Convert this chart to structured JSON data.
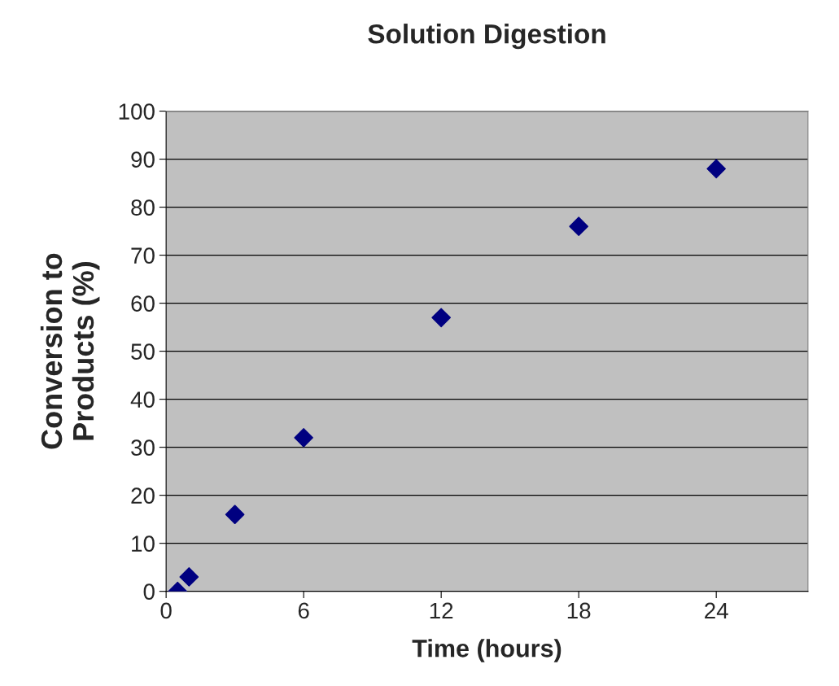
{
  "chart_data": {
    "type": "scatter",
    "title": "Solution Digestion",
    "xlabel": "Time (hours)",
    "ylabel": "Conversion to\nProducts (%)",
    "x": [
      0.5,
      1,
      3,
      6,
      12,
      18,
      24
    ],
    "series": [
      {
        "color": "#000080",
        "values": [
          0,
          3,
          16,
          32,
          57,
          76,
          88
        ]
      }
    ],
    "xlim": [
      0,
      28
    ],
    "xticks": [
      0,
      6,
      12,
      18,
      24
    ],
    "ylim": [
      0,
      100
    ],
    "yticks": [
      0,
      10,
      20,
      30,
      40,
      50,
      60,
      70,
      80,
      90,
      100
    ],
    "grid": "y",
    "marker": "diamond",
    "legend": false
  }
}
